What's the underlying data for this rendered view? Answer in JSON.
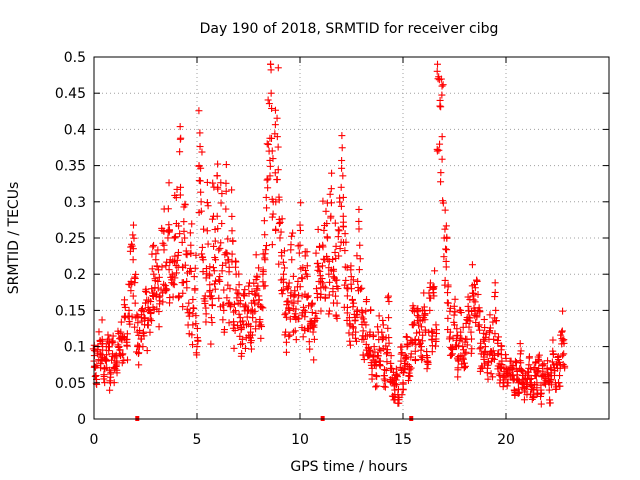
{
  "chart_data": {
    "type": "scatter",
    "title": "Day 190 of 2018, SRMTID for receiver cibg",
    "xlabel": "GPS time / hours",
    "ylabel": "SRMTID / TECUs",
    "xlim": [
      0,
      25
    ],
    "ylim": [
      0,
      0.5
    ],
    "x_ticks": [
      0,
      5,
      10,
      15,
      20
    ],
    "x_tick_labels": [
      "0",
      "5",
      "10",
      "15",
      "20"
    ],
    "y_ticks": [
      0,
      0.05,
      0.1,
      0.15,
      0.2,
      0.25,
      0.3,
      0.35,
      0.4,
      0.45,
      0.5
    ],
    "y_tick_labels": [
      "0",
      "0.05",
      "0.1",
      "0.15",
      "0.2",
      "0.25",
      "0.3",
      "0.35",
      "0.4",
      "0.45",
      "0.5"
    ],
    "grid": true,
    "marker": "+",
    "color": "#ff0000",
    "zero_markers_x": [
      2.1,
      11.1,
      15.4
    ],
    "series": [
      {
        "name": "SRMTID",
        "points": [
          [
            0.0,
            0.08
          ],
          [
            0.1,
            0.06
          ],
          [
            0.2,
            0.1
          ],
          [
            0.3,
            0.09
          ],
          [
            0.4,
            0.11
          ],
          [
            0.5,
            0.07
          ],
          [
            0.6,
            0.08
          ],
          [
            0.7,
            0.1
          ],
          [
            0.8,
            0.05
          ],
          [
            0.9,
            0.09
          ],
          [
            1.0,
            0.07
          ],
          [
            1.1,
            0.08
          ],
          [
            1.2,
            0.1
          ],
          [
            1.3,
            0.12
          ],
          [
            1.4,
            0.09
          ],
          [
            1.5,
            0.14
          ],
          [
            1.6,
            0.11
          ],
          [
            1.7,
            0.15
          ],
          [
            1.8,
            0.19
          ],
          [
            1.9,
            0.22
          ],
          [
            2.0,
            0.16
          ],
          [
            2.1,
            0.12
          ],
          [
            2.2,
            0.1
          ],
          [
            2.3,
            0.14
          ],
          [
            2.4,
            0.12
          ],
          [
            2.5,
            0.16
          ],
          [
            2.6,
            0.13
          ],
          [
            2.7,
            0.15
          ],
          [
            2.8,
            0.18
          ],
          [
            2.9,
            0.2
          ],
          [
            3.0,
            0.22
          ],
          [
            3.1,
            0.19
          ],
          [
            3.2,
            0.17
          ],
          [
            3.3,
            0.21
          ],
          [
            3.4,
            0.24
          ],
          [
            3.5,
            0.18
          ],
          [
            3.6,
            0.26
          ],
          [
            3.7,
            0.22
          ],
          [
            3.8,
            0.2
          ],
          [
            3.9,
            0.25
          ],
          [
            4.0,
            0.27
          ],
          [
            4.1,
            0.23
          ],
          [
            4.2,
            0.32
          ],
          [
            4.3,
            0.21
          ],
          [
            4.4,
            0.25
          ],
          [
            4.5,
            0.19
          ],
          [
            4.6,
            0.16
          ],
          [
            4.7,
            0.24
          ],
          [
            4.8,
            0.13
          ],
          [
            4.9,
            0.18
          ],
          [
            5.0,
            0.1
          ],
          [
            5.1,
            0.35
          ],
          [
            5.2,
            0.3
          ],
          [
            5.3,
            0.22
          ],
          [
            5.4,
            0.17
          ],
          [
            5.5,
            0.26
          ],
          [
            5.6,
            0.2
          ],
          [
            5.7,
            0.14
          ],
          [
            5.8,
            0.28
          ],
          [
            5.9,
            0.22
          ],
          [
            6.0,
            0.32
          ],
          [
            6.1,
            0.19
          ],
          [
            6.2,
            0.27
          ],
          [
            6.3,
            0.15
          ],
          [
            6.4,
            0.29
          ],
          [
            6.5,
            0.22
          ],
          [
            6.6,
            0.18
          ],
          [
            6.7,
            0.26
          ],
          [
            6.8,
            0.13
          ],
          [
            6.9,
            0.2
          ],
          [
            7.0,
            0.16
          ],
          [
            7.1,
            0.14
          ],
          [
            7.2,
            0.11
          ],
          [
            7.3,
            0.17
          ],
          [
            7.4,
            0.13
          ],
          [
            7.5,
            0.15
          ],
          [
            7.6,
            0.12
          ],
          [
            7.7,
            0.14
          ],
          [
            7.8,
            0.16
          ],
          [
            7.9,
            0.18
          ],
          [
            8.0,
            0.17
          ],
          [
            8.1,
            0.13
          ],
          [
            8.2,
            0.2
          ],
          [
            8.3,
            0.22
          ],
          [
            8.4,
            0.33
          ],
          [
            8.5,
            0.37
          ],
          [
            8.6,
            0.45
          ],
          [
            8.7,
            0.3
          ],
          [
            8.8,
            0.34
          ],
          [
            8.9,
            0.39
          ],
          [
            9.0,
            0.27
          ],
          [
            9.1,
            0.23
          ],
          [
            9.2,
            0.2
          ],
          [
            9.3,
            0.12
          ],
          [
            9.4,
            0.18
          ],
          [
            9.5,
            0.15
          ],
          [
            9.6,
            0.22
          ],
          [
            9.7,
            0.16
          ],
          [
            9.8,
            0.14
          ],
          [
            9.9,
            0.19
          ],
          [
            10.0,
            0.24
          ],
          [
            10.1,
            0.17
          ],
          [
            10.2,
            0.15
          ],
          [
            10.3,
            0.2
          ],
          [
            10.4,
            0.17
          ],
          [
            10.5,
            0.13
          ],
          [
            10.6,
            0.16
          ],
          [
            10.7,
            0.11
          ],
          [
            10.8,
            0.18
          ],
          [
            10.9,
            0.21
          ],
          [
            11.0,
            0.19
          ],
          [
            11.1,
            0.24
          ],
          [
            11.2,
            0.22
          ],
          [
            11.3,
            0.27
          ],
          [
            11.4,
            0.2
          ],
          [
            11.5,
            0.28
          ],
          [
            11.6,
            0.18
          ],
          [
            11.7,
            0.23
          ],
          [
            11.8,
            0.16
          ],
          [
            11.9,
            0.26
          ],
          [
            12.0,
            0.32
          ],
          [
            12.1,
            0.28
          ],
          [
            12.2,
            0.21
          ],
          [
            12.3,
            0.17
          ],
          [
            12.4,
            0.14
          ],
          [
            12.5,
            0.18
          ],
          [
            12.6,
            0.16
          ],
          [
            12.7,
            0.12
          ],
          [
            12.8,
            0.19
          ],
          [
            12.9,
            0.24
          ],
          [
            13.0,
            0.15
          ],
          [
            13.1,
            0.11
          ],
          [
            13.2,
            0.13
          ],
          [
            13.3,
            0.09
          ],
          [
            13.4,
            0.12
          ],
          [
            13.5,
            0.07
          ],
          [
            13.6,
            0.1
          ],
          [
            13.7,
            0.06
          ],
          [
            13.8,
            0.12
          ],
          [
            13.9,
            0.08
          ],
          [
            14.0,
            0.11
          ],
          [
            14.1,
            0.06
          ],
          [
            14.2,
            0.09
          ],
          [
            14.3,
            0.14
          ],
          [
            14.4,
            0.07
          ],
          [
            14.5,
            0.05
          ],
          [
            14.6,
            0.04
          ],
          [
            14.7,
            0.06
          ],
          [
            14.8,
            0.03
          ],
          [
            14.9,
            0.08
          ],
          [
            15.0,
            0.05
          ],
          [
            15.1,
            0.07
          ],
          [
            15.2,
            0.1
          ],
          [
            15.3,
            0.06
          ],
          [
            15.4,
            0.09
          ],
          [
            15.5,
            0.13
          ],
          [
            15.6,
            0.11
          ],
          [
            15.7,
            0.15
          ],
          [
            15.8,
            0.12
          ],
          [
            15.9,
            0.1
          ],
          [
            16.0,
            0.14
          ],
          [
            16.1,
            0.12
          ],
          [
            16.2,
            0.08
          ],
          [
            16.3,
            0.15
          ],
          [
            16.4,
            0.11
          ],
          [
            16.5,
            0.17
          ],
          [
            16.6,
            0.13
          ],
          [
            16.7,
            0.47
          ],
          [
            16.8,
            0.44
          ],
          [
            16.9,
            0.39
          ],
          [
            17.0,
            0.25
          ],
          [
            17.1,
            0.21
          ],
          [
            17.2,
            0.16
          ],
          [
            17.3,
            0.12
          ],
          [
            17.4,
            0.09
          ],
          [
            17.5,
            0.13
          ],
          [
            17.6,
            0.1
          ],
          [
            17.7,
            0.08
          ],
          [
            17.8,
            0.12
          ],
          [
            17.9,
            0.1
          ],
          [
            18.0,
            0.09
          ],
          [
            18.1,
            0.11
          ],
          [
            18.2,
            0.14
          ],
          [
            18.3,
            0.12
          ],
          [
            18.4,
            0.17
          ],
          [
            18.5,
            0.15
          ],
          [
            18.6,
            0.19
          ],
          [
            18.7,
            0.13
          ],
          [
            18.8,
            0.09
          ],
          [
            18.9,
            0.11
          ],
          [
            19.0,
            0.1
          ],
          [
            19.1,
            0.07
          ],
          [
            19.2,
            0.12
          ],
          [
            19.3,
            0.08
          ],
          [
            19.4,
            0.11
          ],
          [
            19.5,
            0.15
          ],
          [
            19.6,
            0.09
          ],
          [
            19.7,
            0.06
          ],
          [
            19.8,
            0.08
          ],
          [
            19.9,
            0.05
          ],
          [
            20.0,
            0.07
          ],
          [
            20.1,
            0.05
          ],
          [
            20.2,
            0.08
          ],
          [
            20.3,
            0.06
          ],
          [
            20.4,
            0.04
          ],
          [
            20.5,
            0.07
          ],
          [
            20.6,
            0.05
          ],
          [
            20.7,
            0.09
          ],
          [
            20.8,
            0.06
          ],
          [
            20.9,
            0.04
          ],
          [
            21.0,
            0.05
          ],
          [
            21.1,
            0.07
          ],
          [
            21.2,
            0.05
          ],
          [
            21.3,
            0.03
          ],
          [
            21.4,
            0.06
          ],
          [
            21.5,
            0.05
          ],
          [
            21.6,
            0.08
          ],
          [
            21.7,
            0.04
          ],
          [
            21.8,
            0.06
          ],
          [
            21.9,
            0.05
          ],
          [
            22.0,
            0.07
          ],
          [
            22.1,
            0.04
          ],
          [
            22.2,
            0.06
          ],
          [
            22.3,
            0.09
          ],
          [
            22.4,
            0.05
          ],
          [
            22.5,
            0.07
          ],
          [
            22.6,
            0.06
          ],
          [
            22.7,
            0.12
          ],
          [
            22.8,
            0.09
          ]
        ]
      }
    ]
  }
}
